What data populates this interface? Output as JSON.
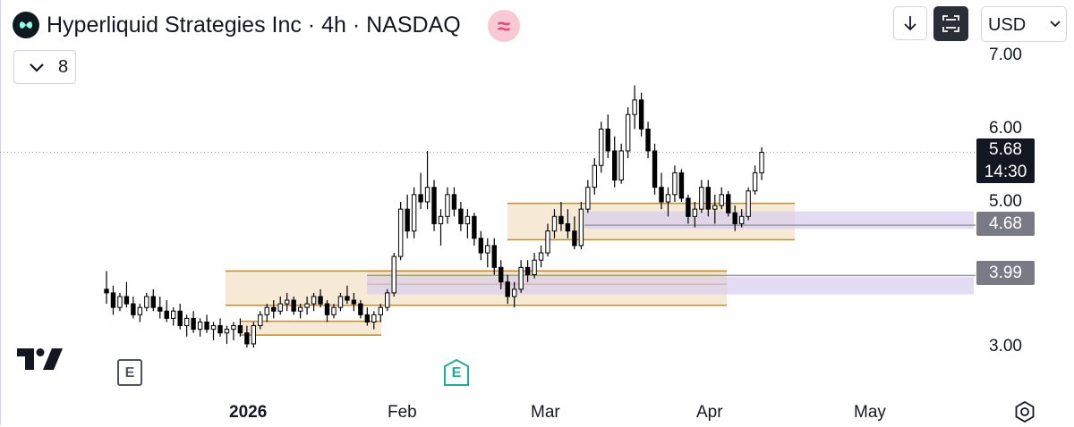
{
  "header": {
    "title": "Hyperliquid Strategies Inc · 4h · NASDAQ",
    "logo_icon": "hyperliquid-logo-icon",
    "badge_glyph": "≈",
    "badge_icon": "pink-waves-icon"
  },
  "legend_toggle": {
    "count": "8",
    "icon": "chevron-down-icon"
  },
  "toolbar": {
    "download_icon": "arrow-down-icon",
    "fullscreen_icon": "fullscreen-icon",
    "currency": "USD",
    "currency_icon": "chevron-down-icon"
  },
  "price_axis": {
    "labels": [
      "7.00",
      "6.00",
      "5.00",
      "3.00"
    ]
  },
  "last_price": {
    "value": "5.68",
    "countdown": "14:30"
  },
  "level_tags": [
    "4.68",
    "3.99"
  ],
  "time_axis": {
    "labels": [
      "2026",
      "Feb",
      "Mar",
      "Apr",
      "May"
    ]
  },
  "earnings_markers": [
    {
      "letter": "E",
      "color": "#50535e"
    },
    {
      "letter": "E",
      "color": "#22ab94"
    }
  ],
  "branding": {
    "logo_icon": "tradingview-logo-icon",
    "settings_icon": "settings-icon"
  },
  "chart_data": {
    "type": "candlestick",
    "title": "Hyperliquid Strategies Inc · 4h · NASDAQ",
    "timeframe": "4h",
    "currency": "USD",
    "ylim": [
      2.75,
      7.2
    ],
    "x_ticks": [
      "2026",
      "Feb",
      "Mar",
      "Apr",
      "May"
    ],
    "y_ticks": [
      3.0,
      5.0,
      6.0,
      7.0
    ],
    "last_price": 5.68,
    "horizontal_levels": [
      4.68,
      3.99
    ],
    "grid": false,
    "colors": {
      "up": "#ffffff",
      "down": "#000000",
      "outline": "#000000",
      "zone_fill": "#f3e2c8",
      "zone_border": "#c98a1e",
      "level_fill": "#d8cdf0",
      "level_line": "#9598a1"
    },
    "zones": [
      {
        "top": 4.05,
        "bottom": 3.58,
        "color": "orange"
      },
      {
        "top": 3.36,
        "bottom": 3.17,
        "color": "orange"
      },
      {
        "top": 4.98,
        "bottom": 4.48,
        "color": "orange"
      },
      {
        "top": 4.05,
        "bottom": 3.87,
        "color": "orange"
      },
      {
        "top": 4.87,
        "bottom": 4.63,
        "color": "purple"
      },
      {
        "top": 3.97,
        "bottom": 3.73,
        "color": "purple"
      }
    ],
    "series": [
      {
        "ohlc": [
          [
            3.8,
            4.05,
            3.6,
            3.75
          ],
          [
            3.75,
            3.85,
            3.45,
            3.55
          ],
          [
            3.55,
            3.75,
            3.5,
            3.7
          ],
          [
            3.7,
            3.9,
            3.55,
            3.6
          ],
          [
            3.6,
            3.7,
            3.4,
            3.45
          ],
          [
            3.45,
            3.6,
            3.35,
            3.55
          ],
          [
            3.55,
            3.75,
            3.5,
            3.7
          ],
          [
            3.7,
            3.8,
            3.5,
            3.55
          ],
          [
            3.55,
            3.7,
            3.4,
            3.5
          ],
          [
            3.5,
            3.65,
            3.35,
            3.4
          ],
          [
            3.4,
            3.55,
            3.3,
            3.5
          ],
          [
            3.5,
            3.6,
            3.25,
            3.3
          ],
          [
            3.3,
            3.45,
            3.15,
            3.4
          ],
          [
            3.4,
            3.5,
            3.2,
            3.25
          ],
          [
            3.25,
            3.4,
            3.15,
            3.35
          ],
          [
            3.35,
            3.45,
            3.2,
            3.25
          ],
          [
            3.25,
            3.35,
            3.1,
            3.3
          ],
          [
            3.3,
            3.4,
            3.15,
            3.2
          ],
          [
            3.2,
            3.3,
            3.05,
            3.25
          ],
          [
            3.25,
            3.35,
            3.1,
            3.3
          ],
          [
            3.3,
            3.4,
            3.15,
            3.2
          ],
          [
            3.2,
            3.3,
            3.0,
            3.05
          ],
          [
            3.05,
            3.35,
            3.0,
            3.3
          ],
          [
            3.3,
            3.5,
            3.25,
            3.45
          ],
          [
            3.45,
            3.6,
            3.35,
            3.55
          ],
          [
            3.55,
            3.65,
            3.4,
            3.5
          ],
          [
            3.5,
            3.7,
            3.45,
            3.6
          ],
          [
            3.6,
            3.75,
            3.5,
            3.65
          ],
          [
            3.65,
            3.7,
            3.45,
            3.5
          ],
          [
            3.5,
            3.6,
            3.4,
            3.55
          ],
          [
            3.55,
            3.7,
            3.45,
            3.6
          ],
          [
            3.6,
            3.75,
            3.5,
            3.7
          ],
          [
            3.7,
            3.8,
            3.55,
            3.6
          ],
          [
            3.6,
            3.65,
            3.35,
            3.45
          ],
          [
            3.45,
            3.6,
            3.4,
            3.55
          ],
          [
            3.55,
            3.75,
            3.5,
            3.7
          ],
          [
            3.7,
            3.85,
            3.6,
            3.65
          ],
          [
            3.65,
            3.75,
            3.5,
            3.6
          ],
          [
            3.6,
            3.65,
            3.4,
            3.45
          ],
          [
            3.45,
            3.55,
            3.3,
            3.35
          ],
          [
            3.35,
            3.5,
            3.25,
            3.45
          ],
          [
            3.45,
            3.6,
            3.35,
            3.55
          ],
          [
            3.55,
            3.8,
            3.5,
            3.75
          ],
          [
            3.75,
            4.3,
            3.7,
            4.25
          ],
          [
            4.25,
            5.0,
            4.2,
            4.9
          ],
          [
            4.9,
            5.1,
            4.5,
            4.6
          ],
          [
            4.6,
            5.2,
            4.5,
            5.1
          ],
          [
            5.1,
            5.4,
            4.9,
            5.0
          ],
          [
            5.0,
            5.7,
            4.9,
            5.2
          ],
          [
            5.2,
            5.3,
            4.6,
            4.7
          ],
          [
            4.7,
            4.9,
            4.4,
            4.8
          ],
          [
            4.8,
            5.2,
            4.7,
            5.1
          ],
          [
            5.1,
            5.2,
            4.8,
            4.9
          ],
          [
            4.9,
            5.0,
            4.6,
            4.7
          ],
          [
            4.7,
            4.9,
            4.5,
            4.8
          ],
          [
            4.8,
            4.85,
            4.4,
            4.5
          ],
          [
            4.5,
            4.6,
            4.2,
            4.3
          ],
          [
            4.3,
            4.5,
            4.1,
            4.4
          ],
          [
            4.4,
            4.5,
            4.0,
            4.1
          ],
          [
            4.1,
            4.2,
            3.8,
            3.9
          ],
          [
            3.9,
            4.0,
            3.6,
            3.7
          ],
          [
            3.7,
            3.9,
            3.55,
            3.8
          ],
          [
            3.8,
            4.2,
            3.75,
            4.1
          ],
          [
            4.1,
            4.2,
            3.9,
            4.0
          ],
          [
            4.0,
            4.3,
            3.95,
            4.2
          ],
          [
            4.2,
            4.4,
            4.1,
            4.3
          ],
          [
            4.3,
            4.7,
            4.25,
            4.6
          ],
          [
            4.6,
            4.9,
            4.5,
            4.8
          ],
          [
            4.8,
            5.0,
            4.6,
            4.7
          ],
          [
            4.7,
            4.9,
            4.5,
            4.6
          ],
          [
            4.6,
            4.8,
            4.35,
            4.4
          ],
          [
            4.4,
            5.0,
            4.35,
            4.9
          ],
          [
            4.9,
            5.3,
            4.85,
            5.2
          ],
          [
            5.2,
            5.6,
            5.1,
            5.5
          ],
          [
            5.5,
            6.1,
            5.4,
            6.0
          ],
          [
            6.0,
            6.2,
            5.6,
            5.7
          ],
          [
            5.7,
            5.9,
            5.2,
            5.3
          ],
          [
            5.3,
            5.8,
            5.25,
            5.7
          ],
          [
            5.7,
            6.3,
            5.6,
            6.2
          ],
          [
            6.2,
            6.6,
            6.0,
            6.4
          ],
          [
            6.4,
            6.5,
            5.9,
            6.0
          ],
          [
            6.0,
            6.1,
            5.6,
            5.7
          ],
          [
            5.7,
            5.8,
            5.1,
            5.2
          ],
          [
            5.2,
            5.4,
            4.9,
            5.0
          ],
          [
            5.0,
            5.2,
            4.8,
            5.1
          ],
          [
            5.1,
            5.5,
            5.0,
            5.4
          ],
          [
            5.4,
            5.45,
            5.0,
            5.05
          ],
          [
            5.05,
            5.1,
            4.7,
            4.8
          ],
          [
            4.8,
            5.0,
            4.65,
            4.9
          ],
          [
            4.9,
            5.3,
            4.85,
            5.2
          ],
          [
            5.2,
            5.3,
            4.8,
            4.9
          ],
          [
            4.9,
            5.1,
            4.7,
            4.95
          ],
          [
            4.95,
            5.2,
            4.9,
            5.1
          ],
          [
            5.1,
            5.15,
            4.8,
            4.85
          ],
          [
            4.85,
            4.95,
            4.6,
            4.7
          ],
          [
            4.7,
            4.9,
            4.65,
            4.8
          ],
          [
            4.8,
            5.2,
            4.75,
            5.15
          ],
          [
            5.15,
            5.5,
            5.1,
            5.4
          ],
          [
            5.4,
            5.75,
            5.3,
            5.68
          ]
        ]
      }
    ]
  }
}
